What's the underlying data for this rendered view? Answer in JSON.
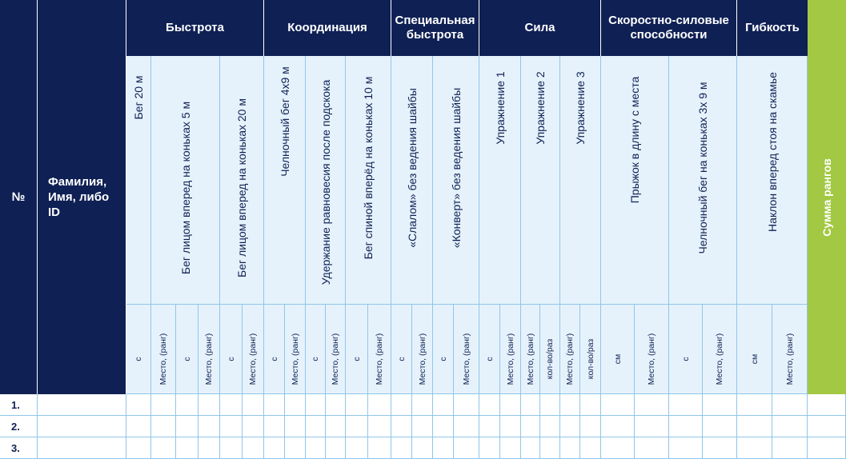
{
  "headers": {
    "num": "№",
    "name": "Фамилия, Имя, либо ID",
    "rank_sum": "Сумма рангов"
  },
  "groups": [
    {
      "label": "Быстрота"
    },
    {
      "label": "Координация"
    },
    {
      "label": "Специальная быстрота"
    },
    {
      "label": "Сила"
    },
    {
      "label": "Скоростно-силовые способности"
    },
    {
      "label": "Гибкость"
    }
  ],
  "tests": [
    "Бег 20 м",
    "Бег лицом вперед на коньках 5 м",
    "Бег лицом вперед на коньках 20 м",
    "Челночный бег 4х9 м",
    "Удержание равновесия после подскока",
    "Бег спиной вперёд на коньках 10 м",
    "«Слалом» без ведения шайбы",
    "«Конверт» без ведения шайбы",
    "Упражнение 1",
    "Упражнение 2",
    "Упражнение 3",
    "Прыжок в длину с места",
    "Челночный бег на коньках 3х 9 м",
    "Наклон вперед стоя на скамье"
  ],
  "units": {
    "sec": "с",
    "rank": "Место, (ранг)",
    "count": "кол-во/раз",
    "cm": "см"
  },
  "rows": [
    "1.",
    "2.",
    "3."
  ]
}
